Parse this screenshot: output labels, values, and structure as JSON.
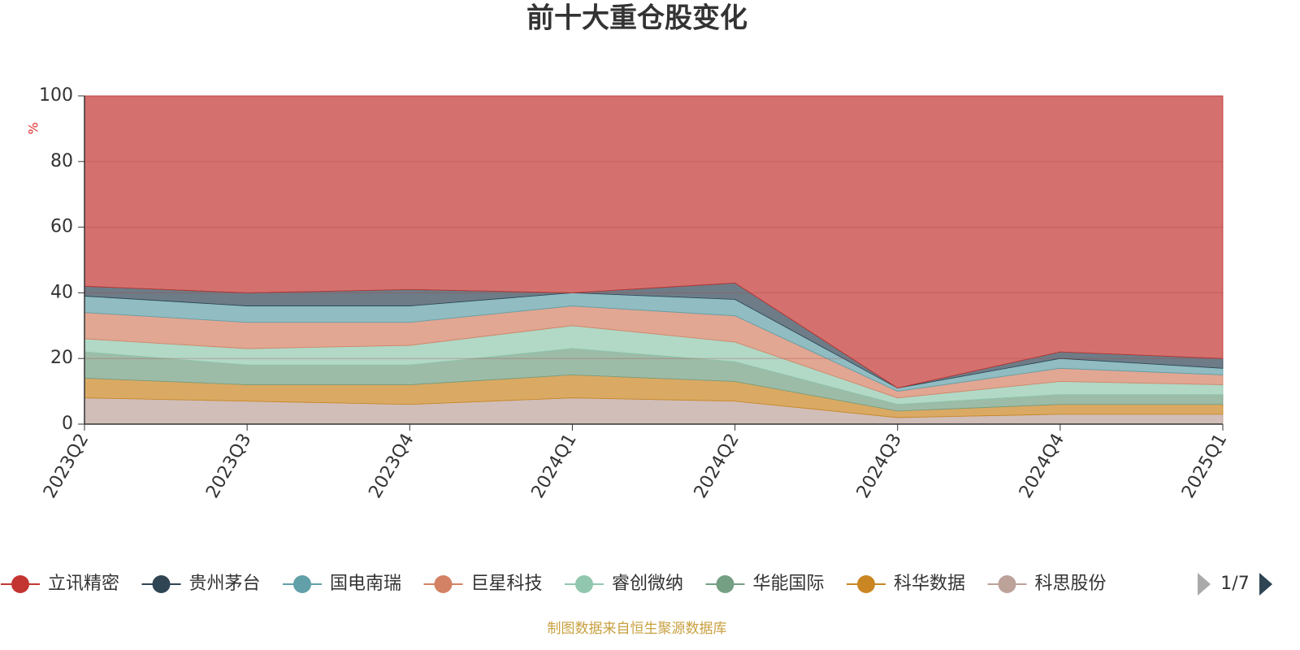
{
  "chart_data": {
    "type": "area",
    "title": "前十大重仓股变化",
    "y_axis_label": "%",
    "categories": [
      "2023Q2",
      "2023Q3",
      "2023Q4",
      "2024Q1",
      "2024Q2",
      "2024Q3",
      "2024Q4",
      "2025Q1"
    ],
    "stacked": true,
    "series": [
      {
        "name": "立讯精密",
        "color": "#c23531",
        "values": [
          58,
          60,
          59,
          60,
          57,
          89,
          78,
          80
        ]
      },
      {
        "name": "贵州茅台",
        "color": "#2f4554",
        "values": [
          3,
          4,
          5,
          0,
          5,
          0,
          2,
          3
        ]
      },
      {
        "name": "国电南瑞",
        "color": "#61a0a8",
        "values": [
          5,
          5,
          5,
          4,
          5,
          1,
          3,
          2
        ]
      },
      {
        "name": "巨星科技",
        "color": "#d48265",
        "values": [
          8,
          8,
          7,
          6,
          8,
          2,
          4,
          3
        ]
      },
      {
        "name": "睿创微纳",
        "color": "#91c7ae",
        "values": [
          4,
          5,
          6,
          7,
          6,
          2,
          4,
          3
        ]
      },
      {
        "name": "华能国际",
        "color": "#749f83",
        "values": [
          8,
          6,
          6,
          8,
          6,
          2,
          3,
          3
        ]
      },
      {
        "name": "科华数据",
        "color": "#ca8622",
        "values": [
          6,
          5,
          6,
          7,
          6,
          2,
          3,
          3
        ]
      },
      {
        "name": "科思股份",
        "color": "#bda29a",
        "values": [
          8,
          7,
          6,
          8,
          7,
          2,
          3,
          3
        ]
      }
    ],
    "ylim": [
      0,
      100
    ],
    "yticks": [
      0,
      20,
      40,
      60,
      80,
      100
    ],
    "grid": true,
    "legend_page": "1/7",
    "source_note": "制图数据来自恒生聚源数据库"
  }
}
